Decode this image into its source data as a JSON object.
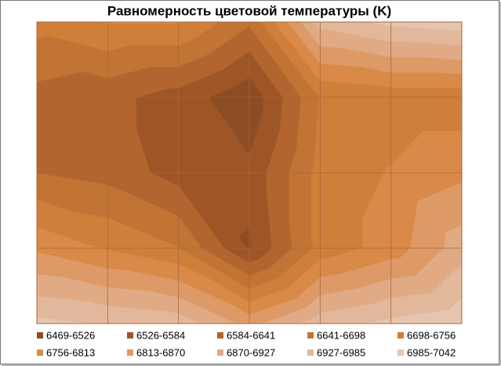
{
  "chart_data": {
    "type": "contour",
    "title": "Равномерность цветовой температуры (K)",
    "levels": [
      6469,
      6526,
      6584,
      6641,
      6698,
      6756,
      6813,
      6870,
      6927,
      6985,
      7042
    ],
    "series": [
      {
        "name": "6469-6526",
        "color": "#8c4c24"
      },
      {
        "name": "6526-6584",
        "color": "#9e5626"
      },
      {
        "name": "6584-6641",
        "color": "#b2652e"
      },
      {
        "name": "6641-6698",
        "color": "#c27434"
      },
      {
        "name": "6698-6756",
        "color": "#cf7f3a"
      },
      {
        "name": "6756-6813",
        "color": "#d98a48"
      },
      {
        "name": "6813-6870",
        "color": "#de9a66"
      },
      {
        "name": "6870-6927",
        "color": "#e0aa85"
      },
      {
        "name": "6927-6985",
        "color": "#e2b89c"
      },
      {
        "name": "6985-7042",
        "color": "#e5c4b0"
      }
    ],
    "z": [
      [
        6720,
        6760,
        6760,
        6650,
        6950,
        7000,
        7020
      ],
      [
        6620,
        6600,
        6560,
        6480,
        6700,
        6720,
        6720
      ],
      [
        6640,
        6620,
        6560,
        6540,
        6720,
        6760,
        6800
      ],
      [
        6800,
        6750,
        6700,
        6520,
        6720,
        6780,
        6900
      ],
      [
        7000,
        6980,
        6960,
        6850,
        6960,
        7000,
        7030
      ]
    ]
  }
}
